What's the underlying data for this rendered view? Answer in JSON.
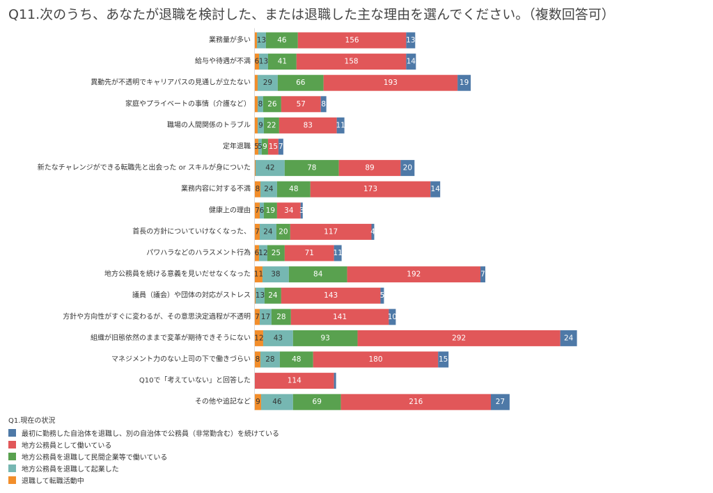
{
  "chart_data": {
    "type": "bar",
    "orientation": "horizontal",
    "stacked": true,
    "title": "Q11.次のうち、あなたが退職を検討した、または退職した主な理由を選んでください。（複数回答可）",
    "categories": [
      "業務量が多い",
      "給与や待遇が不満",
      "異動先が不透明でキャリアパスの見通しが立たない",
      "家庭やプライベートの事情（介護など）",
      "職場の人間関係のトラブル",
      "定年退職",
      "新たなチャレンジができる転職先と出会った or スキルが身についた",
      "業務内容に対する不満",
      "健康上の理由",
      "首長の方針についていけなくなった、",
      "パワハラなどのハラスメント行為",
      "地方公務員を続ける意義を見いだせなくなった",
      "議員（議会）や団体の対応がストレス",
      "方針や方向性がすぐに変わるが、その意思決定過程が不透明",
      "組織が旧態依然のままで変革が期待できそうにない",
      "マネジメント力のない上司の下で働きづらい",
      "Q10で「考えていない」と回答した",
      "その他や追記など"
    ],
    "series": [
      {
        "name": "退職して転職活動中",
        "color": "#f28e2b",
        "values": [
          3,
          6,
          4,
          4,
          4,
          5,
          1,
          8,
          7,
          7,
          6,
          11,
          1,
          7,
          12,
          8,
          0,
          9
        ]
      },
      {
        "name": "地方公務員を退職して起業した",
        "color": "#76b7b2",
        "values": [
          13,
          13,
          29,
          8,
          9,
          5,
          42,
          24,
          6,
          24,
          12,
          38,
          13,
          17,
          43,
          28,
          0,
          46
        ]
      },
      {
        "name": "地方公務員を退職して民間企業等で働いている",
        "color": "#59a14f",
        "values": [
          46,
          41,
          66,
          26,
          22,
          9,
          78,
          48,
          19,
          20,
          25,
          84,
          24,
          28,
          93,
          48,
          0,
          69
        ]
      },
      {
        "name": "地方公務員として働いている",
        "color": "#e15759",
        "values": [
          156,
          158,
          193,
          57,
          83,
          15,
          89,
          173,
          34,
          117,
          71,
          192,
          143,
          141,
          292,
          180,
          114,
          216
        ]
      },
      {
        "name": "最初に勤務した自治体を退職し、別の自治体で公務員（非常勤含む）を続けている",
        "color": "#4e79a7",
        "values": [
          13,
          14,
          19,
          8,
          11,
          7,
          20,
          14,
          3,
          4,
          11,
          7,
          5,
          10,
          24,
          15,
          3,
          27
        ]
      }
    ],
    "hidden_labels": [
      [
        0,
        0
      ],
      [
        2,
        0
      ],
      [
        3,
        0
      ],
      [
        4,
        0
      ],
      [
        6,
        0
      ],
      [
        12,
        0
      ],
      [
        16,
        4
      ]
    ],
    "legend_title": "Q1.現在の状況",
    "legend_order": [
      4,
      3,
      2,
      1,
      0
    ],
    "legend_position": "bottom-left",
    "grid": false
  }
}
